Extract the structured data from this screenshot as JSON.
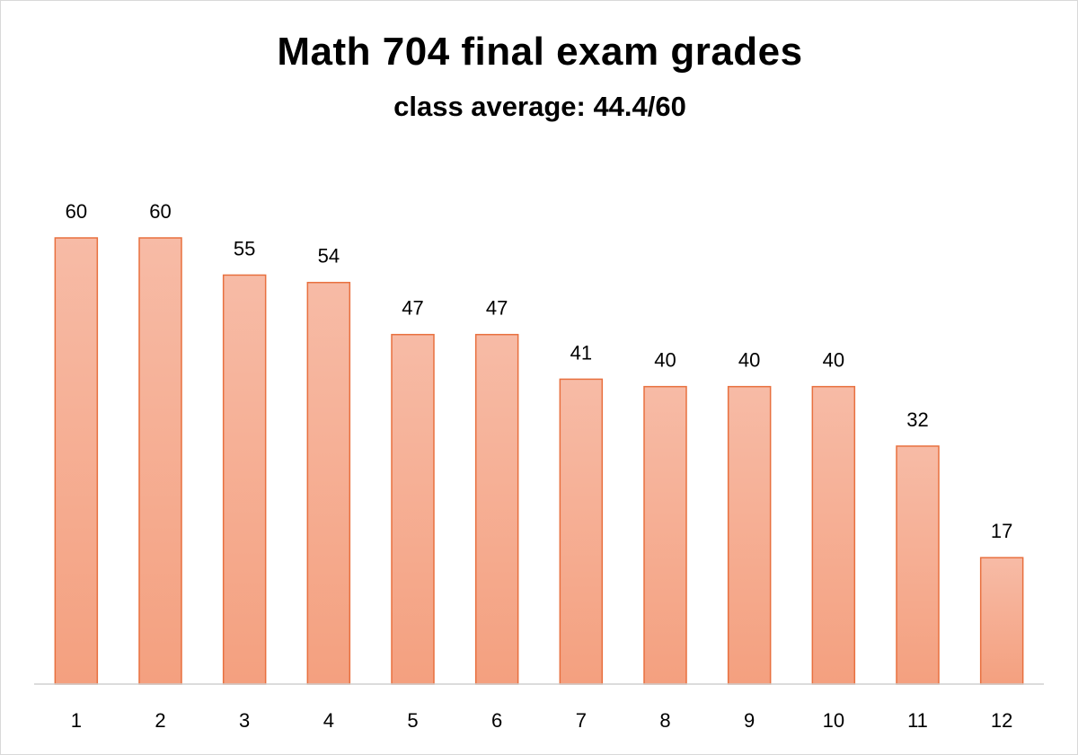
{
  "chart_data": {
    "type": "bar",
    "title": "Math 704 final exam grades",
    "subtitle": "class average: 44.4/60",
    "xlabel": "",
    "ylabel": "",
    "categories": [
      "1",
      "2",
      "3",
      "4",
      "5",
      "6",
      "7",
      "8",
      "9",
      "10",
      "11",
      "12"
    ],
    "values": [
      60,
      60,
      55,
      54,
      47,
      47,
      41,
      40,
      40,
      40,
      32,
      17
    ],
    "ylim": [
      0,
      60
    ],
    "grid": false,
    "legend": "none",
    "data_labels": true,
    "colors": {
      "bar_fill_top": "#f7bba6",
      "bar_fill_bottom": "#f4a07f",
      "bar_stroke": "#e8703f",
      "axis": "#d0d0d0"
    }
  }
}
